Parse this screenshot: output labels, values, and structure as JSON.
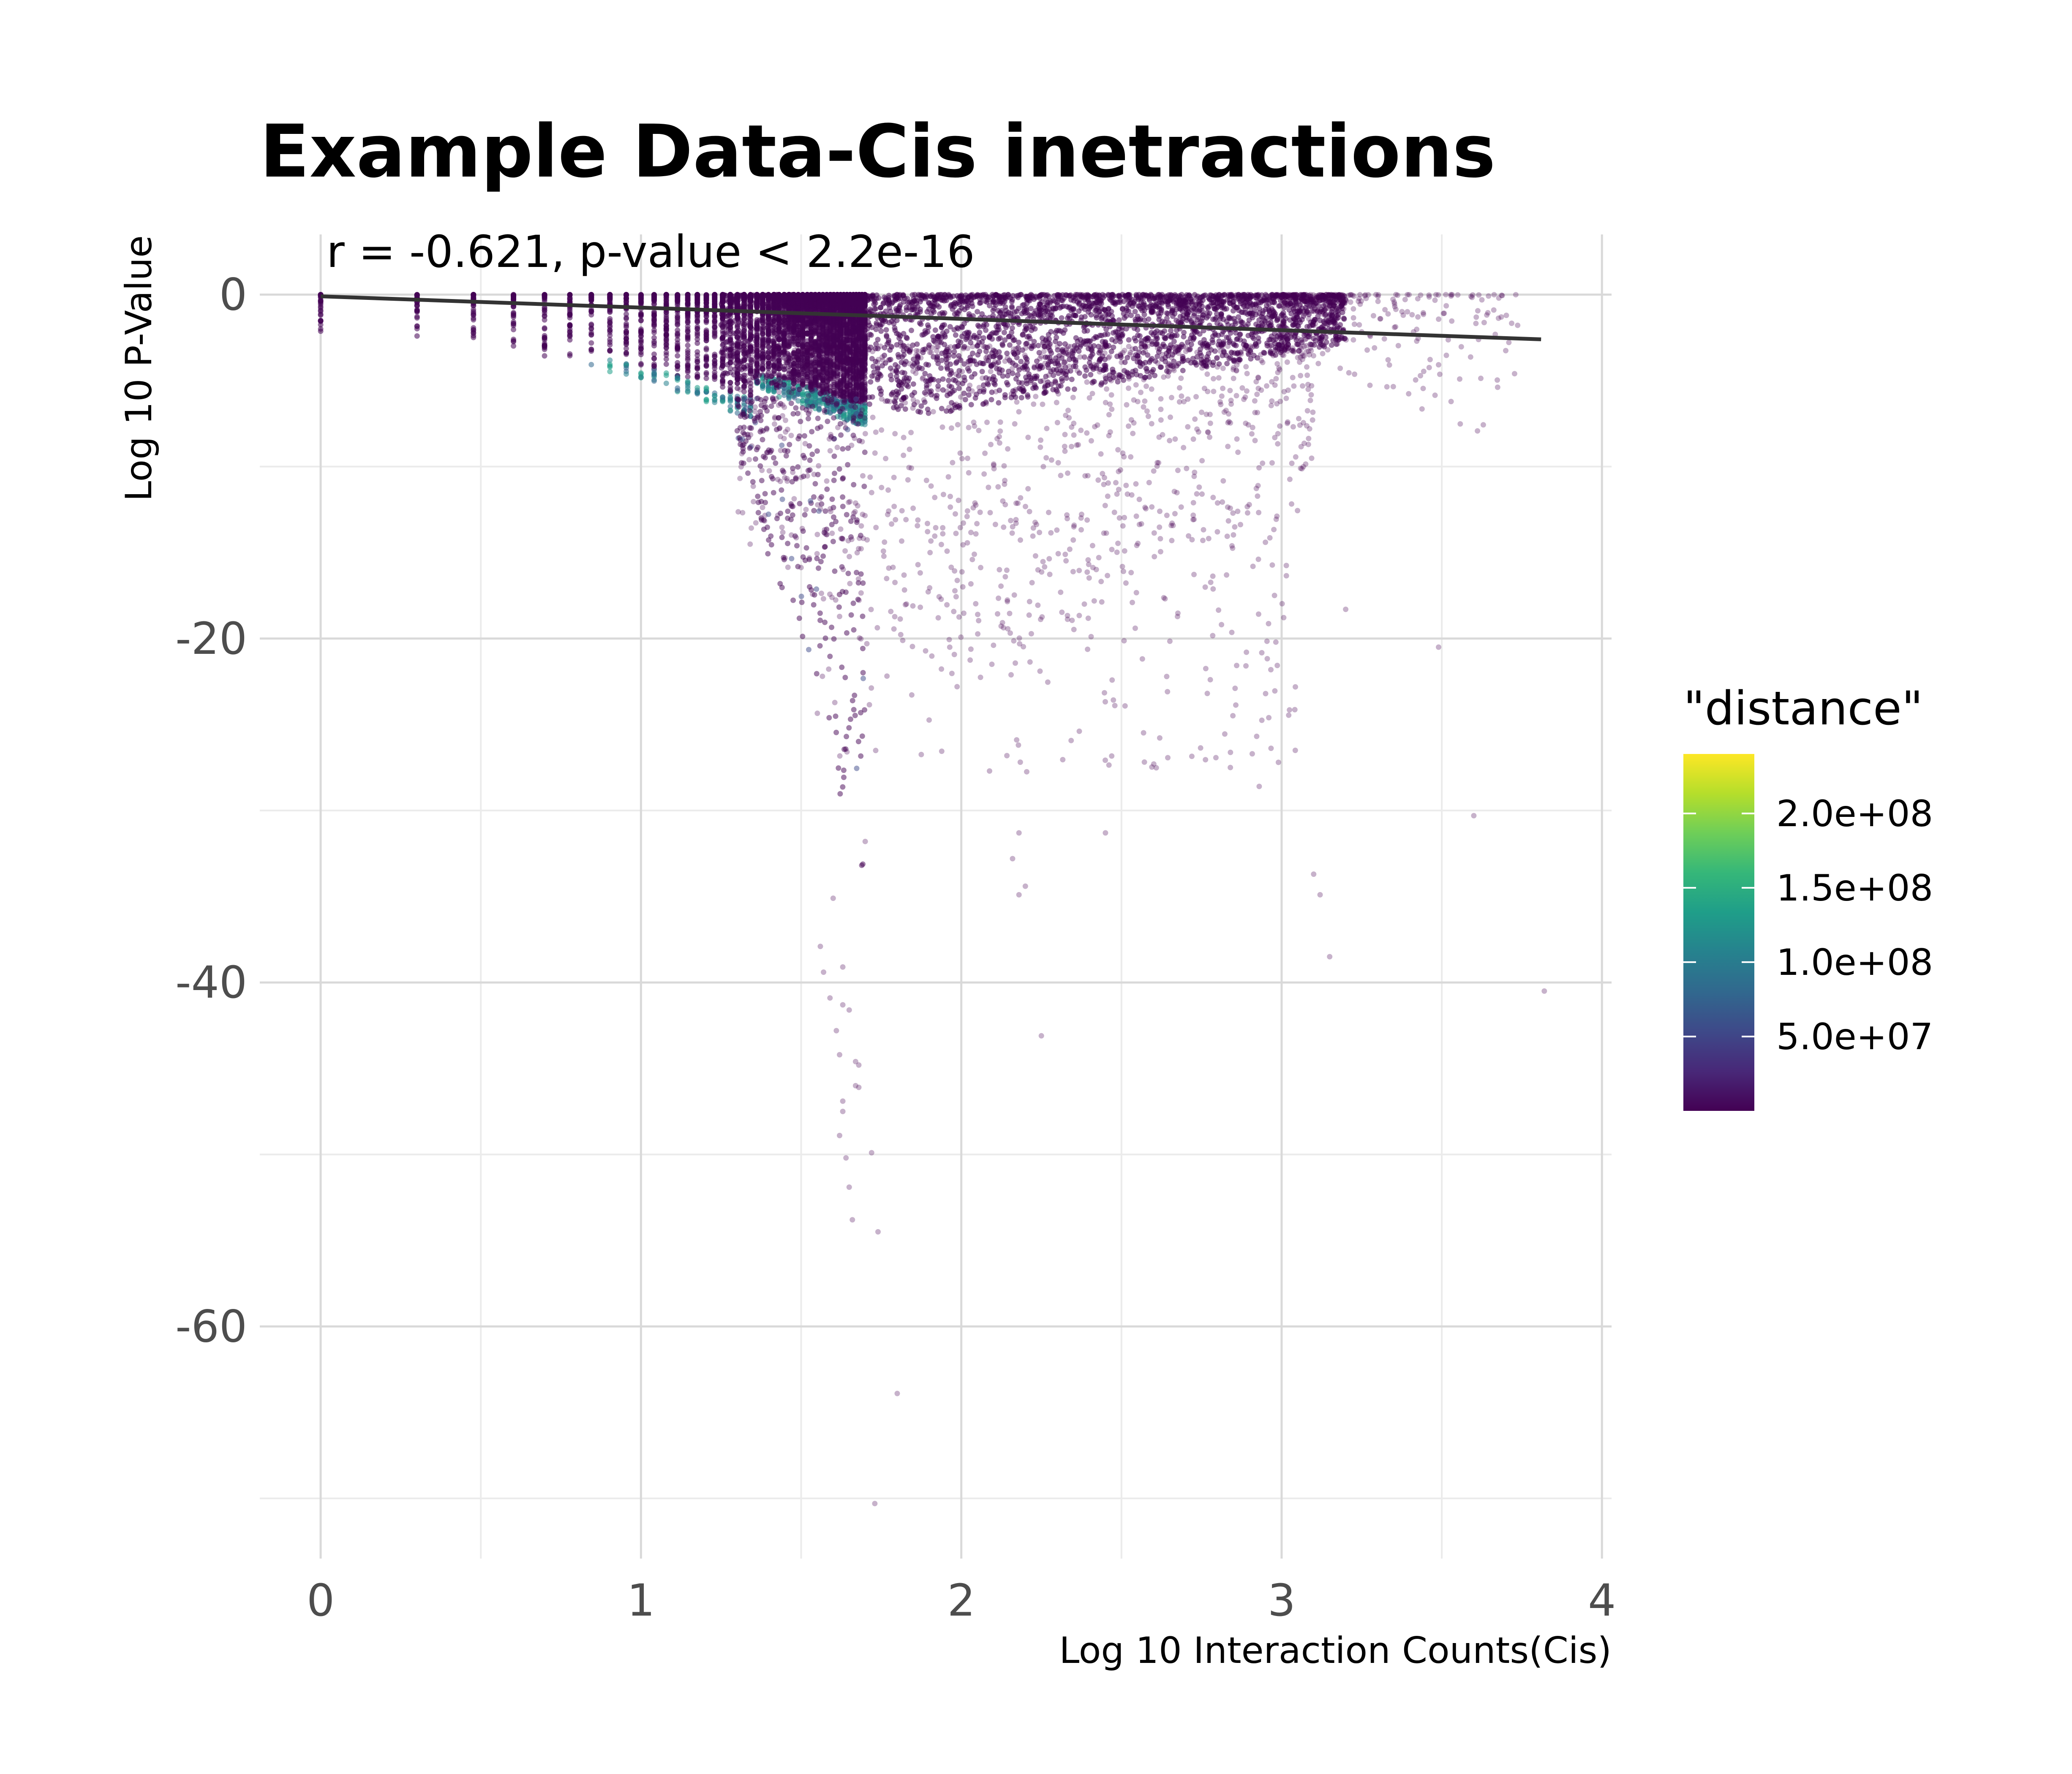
{
  "chart_data": {
    "type": "scatter",
    "title": "Example Data-Cis inetractions",
    "annotation": "r = -0.621, p-value < 2.2e-16",
    "xlabel": "Log 10 Interaction Counts(Cis)",
    "ylabel": "Log 10 P-Value",
    "xlim": [
      -0.19,
      4.03
    ],
    "ylim": [
      -73.5,
      3.5
    ],
    "x_ticks": [
      0,
      1,
      2,
      3,
      4
    ],
    "x_tick_labels": [
      "0",
      "1",
      "2",
      "3",
      "4"
    ],
    "y_ticks": [
      0,
      -20,
      -40,
      -60
    ],
    "y_tick_labels": [
      "0",
      "-20",
      "-40",
      "-60"
    ],
    "x_minor_gridlines": [
      0.5,
      1.5,
      2.5,
      3.5
    ],
    "y_minor_gridlines": [
      -10,
      -30,
      -50,
      -70
    ],
    "grid": true,
    "point_alpha": 0.3,
    "fit_line": {
      "x": [
        0,
        3.81
      ],
      "y": [
        -0.1,
        -2.6
      ],
      "color": "#333333"
    },
    "color_scale": {
      "name": "\"distance\"",
      "palette": "viridis",
      "min": 0,
      "max": 240000000,
      "breaks": [
        50000000,
        100000000,
        150000000,
        200000000
      ],
      "break_labels": [
        "5.0e+07",
        "1.0e+08",
        "1.5e+08",
        "2.0e+08"
      ],
      "colors": [
        "#440154",
        "#482878",
        "#3e4989",
        "#31688e",
        "#26828e",
        "#1f9e89",
        "#35b779",
        "#6ece58",
        "#b5de2b",
        "#fde725"
      ]
    },
    "legend_position": "right",
    "discrete_x_levels": [
      0,
      0.301,
      0.477,
      0.602,
      0.699,
      0.778,
      0.845,
      0.903,
      0.954,
      1.0,
      1.041,
      1.079,
      1.114,
      1.146,
      1.176,
      1.204,
      1.23,
      1.255,
      1.279,
      1.301,
      1.322,
      1.342,
      1.362,
      1.38,
      1.398,
      1.415,
      1.431,
      1.447,
      1.462,
      1.477,
      1.491,
      1.505,
      1.519,
      1.531,
      1.544,
      1.556,
      1.568,
      1.58,
      1.591,
      1.602,
      1.613,
      1.623,
      1.633,
      1.643,
      1.653,
      1.663,
      1.672,
      1.681,
      1.69,
      1.699
    ],
    "outlier_points": [
      {
        "x": 1.8,
        "y": -63.9
      },
      {
        "x": 1.73,
        "y": -70.3
      },
      {
        "x": 1.65,
        "y": -51.9
      },
      {
        "x": 1.66,
        "y": -53.8
      },
      {
        "x": 1.64,
        "y": -50.2
      },
      {
        "x": 1.74,
        "y": -54.5
      },
      {
        "x": 1.72,
        "y": -49.9
      },
      {
        "x": 1.62,
        "y": -48.9
      },
      {
        "x": 1.63,
        "y": -46.9
      },
      {
        "x": 1.63,
        "y": -47.5
      },
      {
        "x": 1.68,
        "y": -44.8
      },
      {
        "x": 1.67,
        "y": -44.6
      },
      {
        "x": 1.67,
        "y": -46.0
      },
      {
        "x": 1.68,
        "y": -46.1
      },
      {
        "x": 1.62,
        "y": -44.2
      },
      {
        "x": 1.61,
        "y": -42.8
      },
      {
        "x": 1.63,
        "y": -41.3
      },
      {
        "x": 1.65,
        "y": -41.6
      },
      {
        "x": 1.63,
        "y": -39.1
      },
      {
        "x": 1.57,
        "y": -39.4
      },
      {
        "x": 1.59,
        "y": -40.9
      },
      {
        "x": 1.56,
        "y": -37.9
      },
      {
        "x": 3.82,
        "y": -40.5
      },
      {
        "x": 3.15,
        "y": -38.5
      },
      {
        "x": 2.25,
        "y": -43.1
      },
      {
        "x": 3.1,
        "y": -33.7
      },
      {
        "x": 3.12,
        "y": -34.9
      },
      {
        "x": 3.6,
        "y": -30.3
      },
      {
        "x": 2.45,
        "y": -31.3
      },
      {
        "x": 2.18,
        "y": -31.3
      },
      {
        "x": 2.16,
        "y": -32.8
      },
      {
        "x": 2.2,
        "y": -34.4
      },
      {
        "x": 2.18,
        "y": -34.9
      },
      {
        "x": 1.7,
        "y": -31.8
      },
      {
        "x": 1.6,
        "y": -35.1
      },
      {
        "x": 2.93,
        "y": -28.6
      },
      {
        "x": 2.84,
        "y": -27.5
      },
      {
        "x": 2.99,
        "y": -27.2
      },
      {
        "x": 3.49,
        "y": -20.5
      },
      {
        "x": 3.2,
        "y": -18.3
      },
      {
        "x": 2.96,
        "y": -24.6
      },
      {
        "x": 2.95,
        "y": -23.2
      }
    ]
  }
}
